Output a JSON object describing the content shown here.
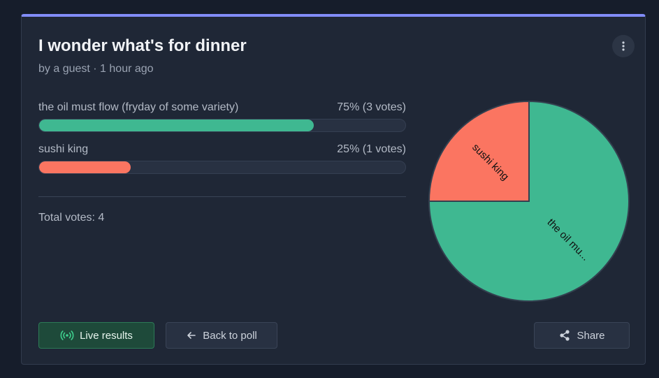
{
  "poll": {
    "title": "I wonder what's for dinner",
    "byline": "by a guest · 1 hour ago",
    "total_label": "Total votes: 4"
  },
  "options": [
    {
      "label": "the oil must flow (fryday of some variety)",
      "stat": "75% (3 votes)",
      "percent": 75,
      "color": "#3fb891"
    },
    {
      "label": "sushi king",
      "stat": "25% (1 votes)",
      "percent": 25,
      "color": "#fb7561"
    }
  ],
  "chart_data": {
    "type": "pie",
    "slices": [
      {
        "label": "the oil mu...",
        "value": 3,
        "color": "#3fb891"
      },
      {
        "label": "sushi king",
        "value": 1,
        "color": "#fb7561"
      }
    ]
  },
  "actions": {
    "live": "Live results",
    "back": "Back to poll",
    "share": "Share"
  },
  "icons": {
    "menu": "more-vertical-icon",
    "live": "broadcast-icon",
    "back": "arrow-left-icon",
    "share": "share-icon"
  }
}
